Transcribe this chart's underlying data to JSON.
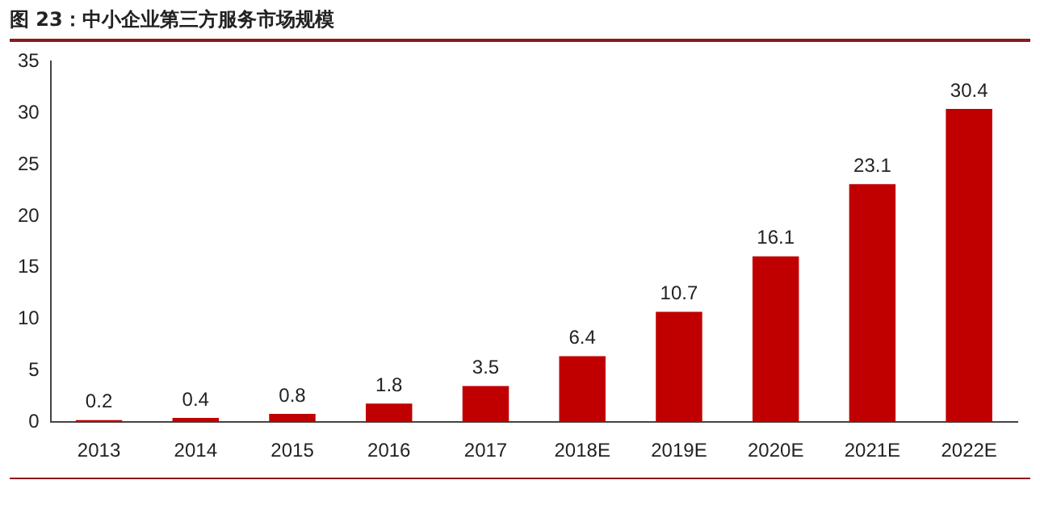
{
  "chart_data": {
    "type": "bar",
    "title": "图 23：中小企业第三方服务市场规模",
    "categories": [
      "2013",
      "2014",
      "2015",
      "2016",
      "2017",
      "2018E",
      "2019E",
      "2020E",
      "2021E",
      "2022E"
    ],
    "values": [
      0.2,
      0.4,
      0.8,
      1.8,
      3.5,
      6.4,
      10.7,
      16.1,
      23.1,
      30.4
    ],
    "color": "#c00000",
    "ylim": [
      0,
      35
    ],
    "yticks": [
      0,
      5,
      10,
      15,
      20,
      25,
      30,
      35
    ],
    "grid": false,
    "data_labels": true
  }
}
